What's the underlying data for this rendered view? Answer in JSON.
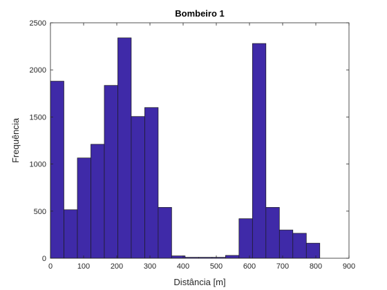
{
  "chart_data": {
    "type": "bar",
    "title": "Bombeiro 1",
    "xlabel": "Distância [m]",
    "ylabel": "Frequência",
    "xlim": [
      0,
      900
    ],
    "ylim": [
      0,
      2500
    ],
    "xticks": [
      0,
      100,
      200,
      300,
      400,
      500,
      600,
      700,
      800,
      900
    ],
    "yticks": [
      0,
      500,
      1000,
      1500,
      2000,
      2500
    ],
    "bin_width": 40.6,
    "bin_edges": [
      0,
      40.6,
      81.2,
      121.8,
      162.4,
      203.0,
      243.6,
      284.2,
      324.8,
      365.4,
      406.0,
      446.6,
      487.2,
      527.8,
      568.4,
      609.0,
      649.6,
      690.2,
      730.8,
      771.4,
      812.0
    ],
    "values": [
      1880,
      515,
      1065,
      1210,
      1835,
      2340,
      1505,
      1600,
      540,
      25,
      10,
      10,
      10,
      30,
      420,
      2280,
      540,
      300,
      265,
      160
    ],
    "bar_color": "#3f2aa8",
    "bar_edge_color": "#1a1a1a",
    "grid": false,
    "box": true
  }
}
